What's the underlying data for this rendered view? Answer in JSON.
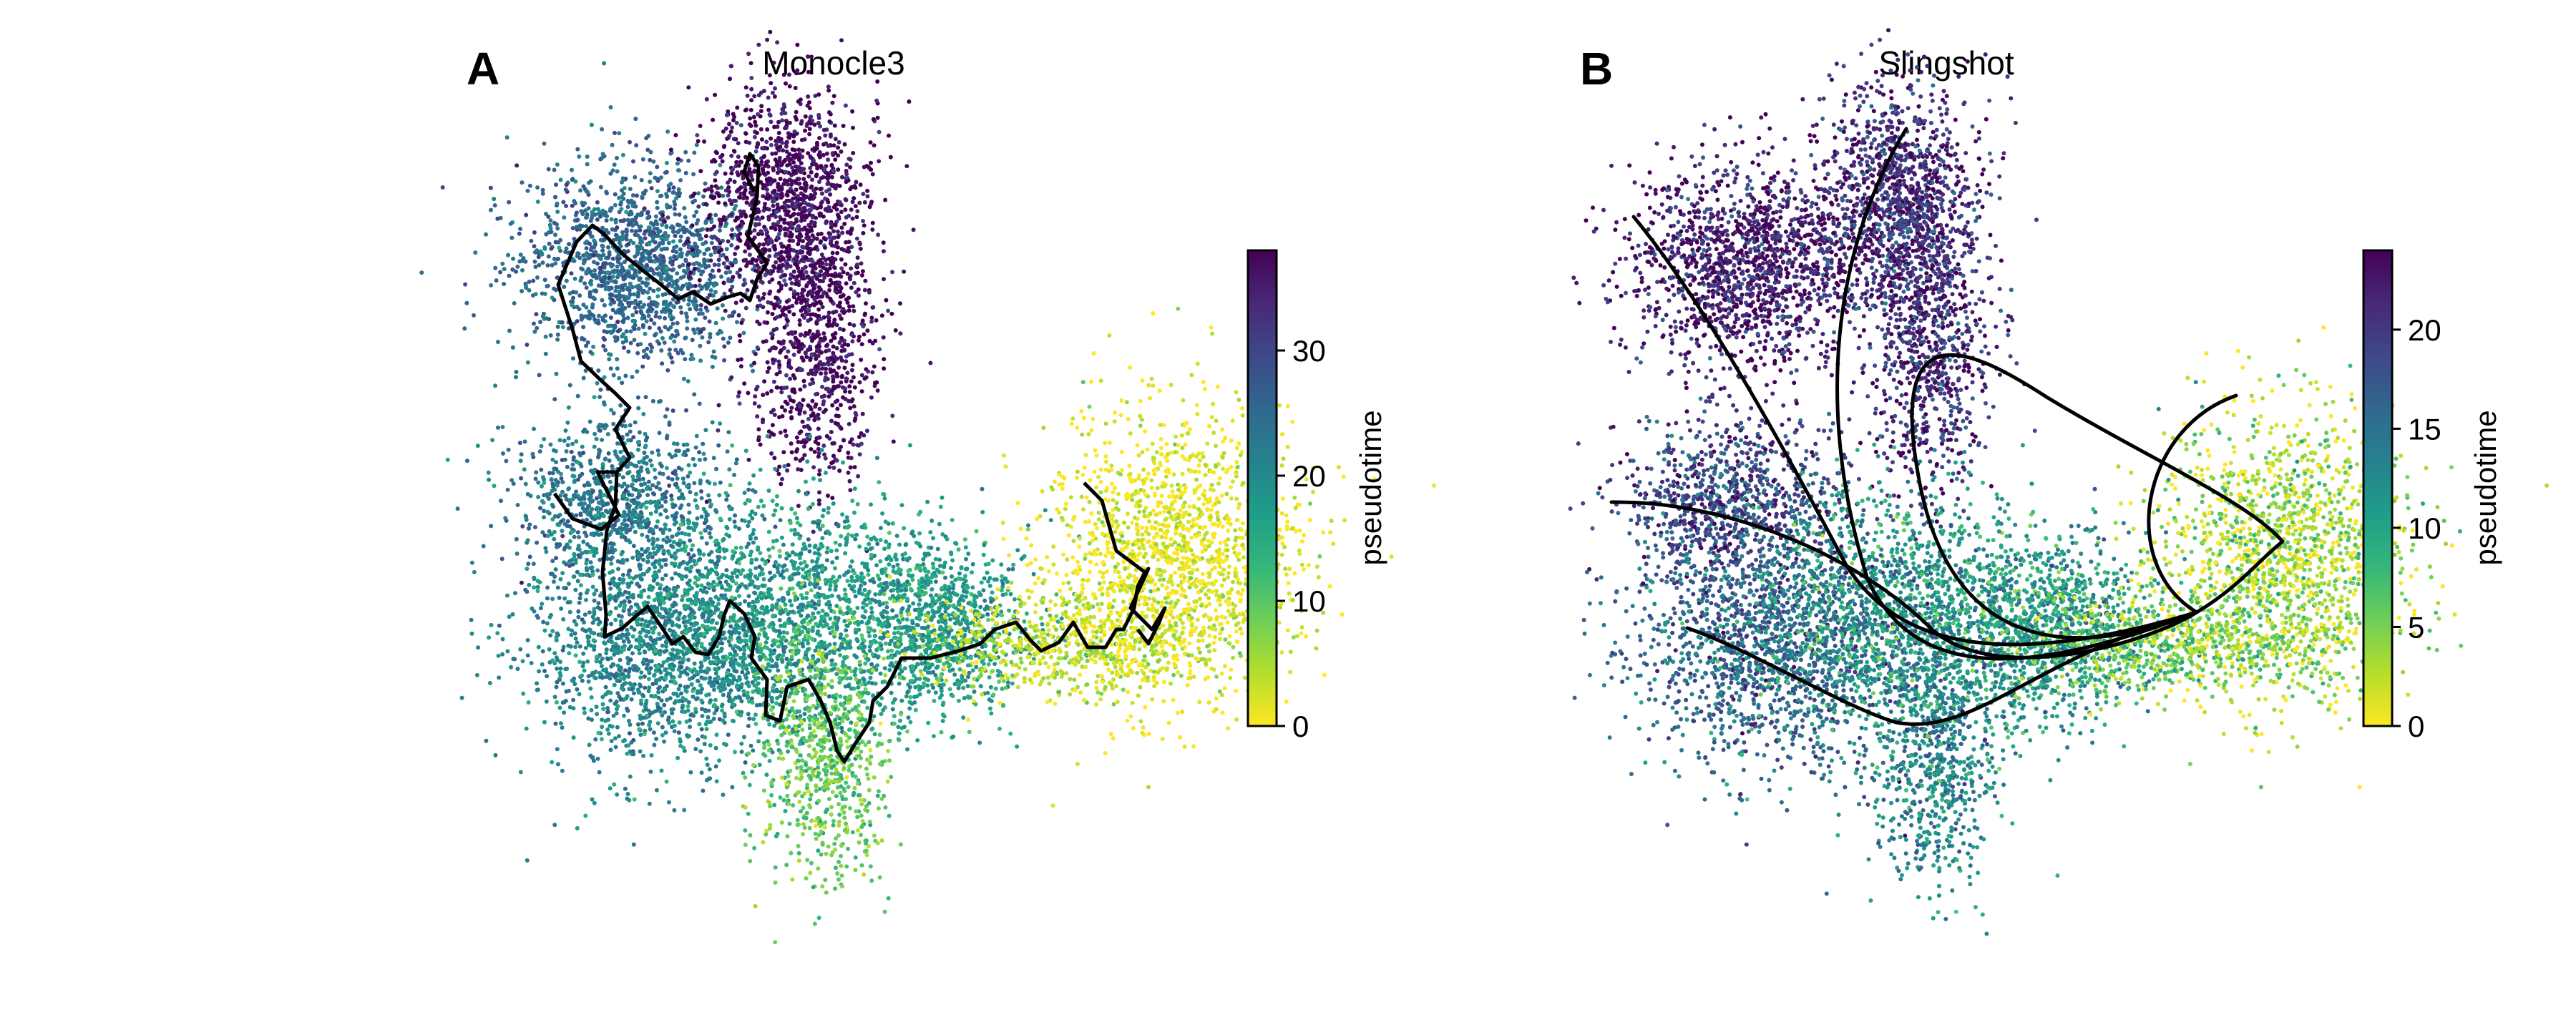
{
  "colormap": [
    "#fde725",
    "#b5de2b",
    "#6ece58",
    "#35b779",
    "#1f9e89",
    "#26828e",
    "#31688e",
    "#3e4989",
    "#482878",
    "#440154"
  ],
  "chart_data": [
    {
      "type": "scatter",
      "panel_label": "A",
      "title": "Monocle3",
      "colorbar": {
        "label": "pseudotime",
        "ticks": [
          0,
          10,
          20,
          30
        ],
        "range": [
          0,
          38
        ]
      },
      "cluster_pseudotime": [
        {
          "region": "upper-left lobe",
          "pseudotime": 25
        },
        {
          "region": "top-middle lobe",
          "pseudotime": 37
        },
        {
          "region": "left-middle lobe",
          "pseudotime": 23
        },
        {
          "region": "lower-left lobe",
          "pseudotime": 21
        },
        {
          "region": "center bridge",
          "pseudotime": 17
        },
        {
          "region": "bottom-middle lobe",
          "pseudotime": 9
        },
        {
          "region": "right bridge",
          "pseudotime": 4
        },
        {
          "region": "right lobe",
          "pseudotime": 1
        }
      ],
      "trajectory": "principal graph (black polyline)"
    },
    {
      "type": "scatter",
      "panel_label": "B",
      "title": "Slingshot",
      "colorbar": {
        "label": "pseudotime",
        "ticks": [
          0,
          5,
          10,
          15,
          20
        ],
        "range": [
          0,
          24
        ]
      },
      "cluster_pseudotime": [
        {
          "region": "upper-left lobe",
          "pseudotime": 22
        },
        {
          "region": "top-middle lobe",
          "pseudotime": 21
        },
        {
          "region": "left-middle lobe",
          "pseudotime": 19
        },
        {
          "region": "lower-left lobe",
          "pseudotime": 16
        },
        {
          "region": "center bridge",
          "pseudotime": 11
        },
        {
          "region": "bottom-middle lobe",
          "pseudotime": 13
        },
        {
          "region": "right bridge",
          "pseudotime": 5
        },
        {
          "region": "right lobe",
          "pseudotime": 3
        }
      ],
      "trajectory": "principal curves (6 lineages)"
    }
  ]
}
